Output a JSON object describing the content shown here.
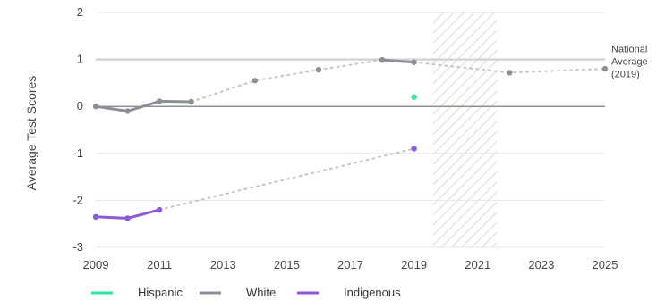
{
  "chart_data": {
    "type": "line",
    "ylabel": "Average Test Scores",
    "xlim": [
      2009,
      2025
    ],
    "ylim": [
      -3,
      2
    ],
    "x_ticks": [
      "2009",
      "2011",
      "2013",
      "2015",
      "2017",
      "2019",
      "2021",
      "2023",
      "2025"
    ],
    "y_ticks": [
      "2",
      "1",
      "0",
      "-1",
      "-2",
      "-3"
    ],
    "reference_line": {
      "value": 1,
      "label_lines": [
        "National",
        "Average",
        "(2019)"
      ]
    },
    "hatched_span": [
      2019.6,
      2021.6
    ],
    "grid": false,
    "legend": {
      "placement": "bottom",
      "items": [
        "Hispanic",
        "White",
        "Indigenous"
      ]
    },
    "series": [
      {
        "name": "Hispanic",
        "color": "#2ee59d",
        "points": [
          [
            2019,
            0.2
          ]
        ],
        "gap_segments": []
      },
      {
        "name": "White",
        "color": "#8c9096",
        "points": [
          [
            2009,
            0.0
          ],
          [
            2010,
            -0.1
          ],
          [
            2011,
            0.11
          ],
          [
            2012,
            0.1
          ],
          [
            2014,
            0.55
          ],
          [
            2016,
            0.78
          ],
          [
            2018,
            0.99
          ],
          [
            2019,
            0.94
          ],
          [
            2022,
            0.72
          ],
          [
            2025,
            0.8
          ]
        ],
        "solid_segments": [
          [
            2009,
            2010,
            2011,
            2012
          ],
          [
            2018,
            2019
          ]
        ],
        "dotted_segments": [
          [
            2012,
            2014,
            2016,
            2018
          ],
          [
            2019,
            2022,
            2025
          ]
        ]
      },
      {
        "name": "Indigenous",
        "color": "#8c5ad6",
        "points": [
          [
            2009,
            -2.35
          ],
          [
            2010,
            -2.38
          ],
          [
            2011,
            -2.2
          ],
          [
            2019,
            -0.9
          ]
        ],
        "solid_segments": [
          [
            2009,
            2010,
            2011
          ]
        ],
        "dotted_segments": [
          [
            2011,
            2019
          ]
        ]
      }
    ]
  }
}
